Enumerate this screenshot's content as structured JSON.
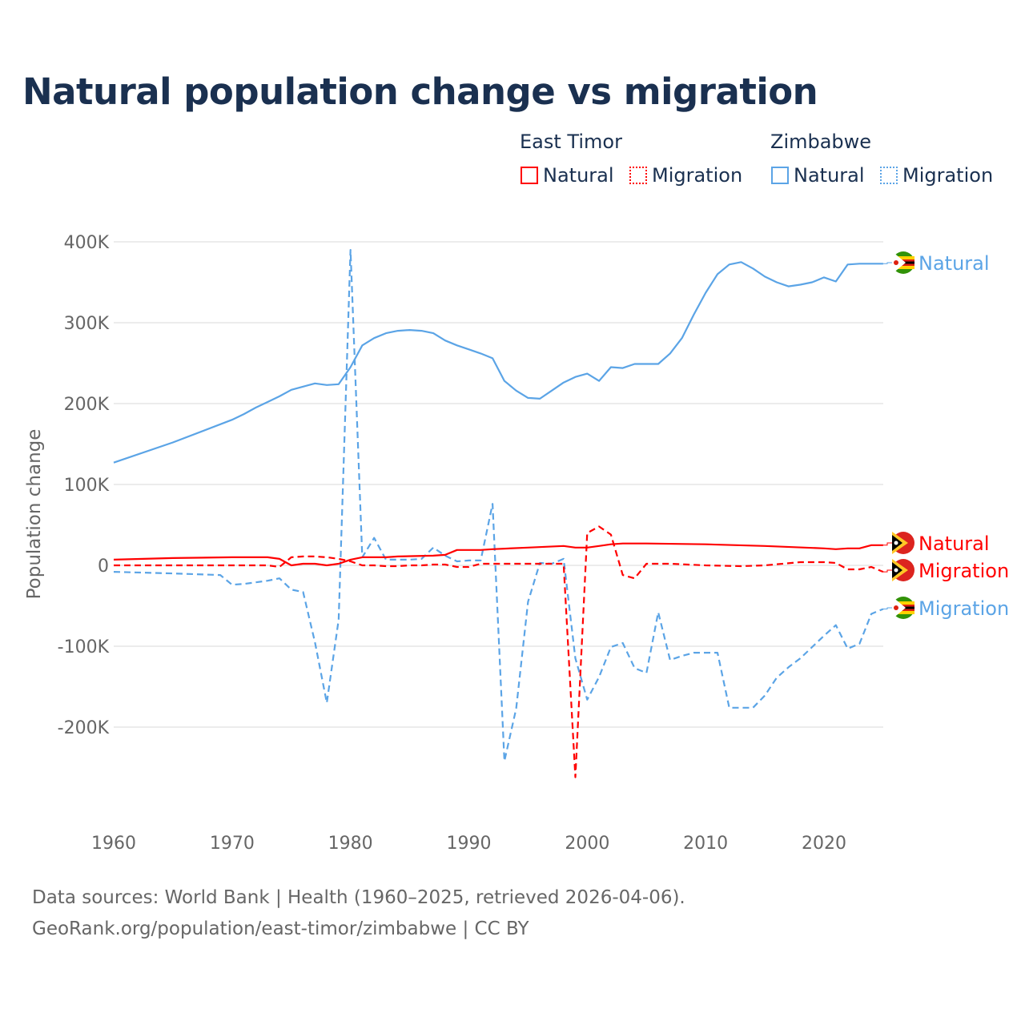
{
  "title": "Natural population change vs migration",
  "legend": {
    "groups": [
      {
        "name": "East Timor",
        "items": [
          {
            "label": "Natural",
            "style": "solid"
          },
          {
            "label": "Migration",
            "style": "dotted"
          }
        ],
        "color": "#ff0000"
      },
      {
        "name": "Zimbabwe",
        "items": [
          {
            "label": "Natural",
            "style": "solid"
          },
          {
            "label": "Migration",
            "style": "dotted"
          }
        ],
        "color": "#5ba4e6"
      }
    ]
  },
  "footer": {
    "line1": "Data sources: World Bank | Health (1960–2025, retrieved 2026-04-06).",
    "line2": "GeoRank.org/population/east-timor/zimbabwe | CC BY"
  },
  "chart_data": {
    "type": "line",
    "title": "Natural population change vs migration",
    "xlabel": "",
    "ylabel": "Population change",
    "xlim": [
      1960,
      2025
    ],
    "ylim": [
      -300000,
      400000
    ],
    "xticks": [
      1960,
      1970,
      1980,
      1990,
      2000,
      2010,
      2020
    ],
    "xtick_labels": [
      "1960",
      "1970",
      "1980",
      "1990",
      "2000",
      "2010",
      "2020"
    ],
    "yticks": [
      400000,
      300000,
      200000,
      100000,
      0,
      -100000,
      -200000
    ],
    "ytick_labels": [
      "400K",
      "300K",
      "200K",
      "100K",
      "0",
      "-100K",
      "-200K"
    ],
    "grid": true,
    "legend_position": "top-right",
    "series": [
      {
        "name": "Zimbabwe Natural",
        "end_label": "Natural",
        "color": "#5ba4e6",
        "dash": false,
        "x": [
          1960,
          1965,
          1970,
          1971,
          1972,
          1973,
          1974,
          1975,
          1976,
          1977,
          1978,
          1979,
          1980,
          1981,
          1982,
          1983,
          1984,
          1985,
          1986,
          1987,
          1988,
          1989,
          1990,
          1991,
          1992,
          1993,
          1994,
          1995,
          1996,
          1997,
          1998,
          1999,
          2000,
          2001,
          2002,
          2003,
          2004,
          2005,
          2006,
          2007,
          2008,
          2009,
          2010,
          2011,
          2012,
          2013,
          2014,
          2015,
          2016,
          2017,
          2018,
          2019,
          2020,
          2021,
          2022,
          2023,
          2024,
          2025
        ],
        "y": [
          127000,
          152000,
          180000,
          187000,
          195000,
          202000,
          209000,
          217000,
          221000,
          225000,
          223000,
          224000,
          245000,
          272000,
          281000,
          287000,
          290000,
          291000,
          290000,
          287000,
          278000,
          272000,
          267000,
          262000,
          256000,
          228000,
          216000,
          207000,
          206000,
          216000,
          226000,
          233000,
          237000,
          228000,
          245000,
          244000,
          249000,
          249000,
          249000,
          262000,
          281000,
          310000,
          337000,
          360000,
          372000,
          375000,
          367000,
          357000,
          350000,
          345000,
          347000,
          350000,
          356000,
          351000,
          372000,
          373000,
          373000,
          373000
        ]
      },
      {
        "name": "Zimbabwe Migration",
        "end_label": "Migration",
        "color": "#5ba4e6",
        "dash": true,
        "x": [
          1960,
          1965,
          1969,
          1970,
          1971,
          1972,
          1973,
          1974,
          1975,
          1976,
          1977,
          1978,
          1979,
          1980,
          1981,
          1982,
          1983,
          1984,
          1985,
          1986,
          1987,
          1988,
          1989,
          1990,
          1991,
          1992,
          1993,
          1994,
          1995,
          1996,
          1997,
          1998,
          1999,
          2000,
          2001,
          2002,
          2003,
          2004,
          2005,
          2006,
          2007,
          2008,
          2009,
          2010,
          2011,
          2012,
          2013,
          2014,
          2015,
          2016,
          2017,
          2018,
          2019,
          2020,
          2021,
          2022,
          2023,
          2024,
          2025
        ],
        "y": [
          -8000,
          -10000,
          -12000,
          -24000,
          -23000,
          -21000,
          -19000,
          -16000,
          -30000,
          -33000,
          -95000,
          -170000,
          -67000,
          390000,
          10000,
          34000,
          7000,
          7000,
          7000,
          8000,
          22000,
          12000,
          5000,
          6000,
          6000,
          76000,
          -242000,
          -177000,
          -45000,
          3000,
          2000,
          8000,
          -115000,
          -166000,
          -138000,
          -101000,
          -96000,
          -127000,
          -133000,
          -58000,
          -117000,
          -112000,
          -108000,
          -108000,
          -108000,
          -176000,
          -176000,
          -176000,
          -161000,
          -139000,
          -126000,
          -115000,
          -101000,
          -87000,
          -74000,
          -103000,
          -97000,
          -60000,
          -54000
        ]
      },
      {
        "name": "East Timor Natural",
        "end_label": "Natural",
        "color": "#ff0000",
        "dash": false,
        "x": [
          1960,
          1965,
          1970,
          1973,
          1974,
          1975,
          1976,
          1977,
          1978,
          1979,
          1980,
          1981,
          1983,
          1984,
          1987,
          1988,
          1989,
          1991,
          1992,
          1995,
          1998,
          1999,
          2000,
          2001,
          2002,
          2003,
          2005,
          2010,
          2015,
          2020,
          2021,
          2022,
          2023,
          2024,
          2025
        ],
        "y": [
          7000,
          9000,
          10000,
          10000,
          8000,
          0,
          2000,
          2000,
          0,
          2000,
          7000,
          10000,
          10000,
          11000,
          12000,
          13000,
          19000,
          19000,
          20000,
          22000,
          24000,
          22000,
          22000,
          24000,
          26000,
          27000,
          27000,
          26000,
          24000,
          21000,
          20000,
          21000,
          21000,
          25000,
          25000
        ]
      },
      {
        "name": "East Timor Migration",
        "end_label": "Migration",
        "color": "#ff0000",
        "dash": true,
        "x": [
          1960,
          1973,
          1974,
          1975,
          1976,
          1977,
          1978,
          1979,
          1980,
          1981,
          1982,
          1983,
          1984,
          1985,
          1986,
          1987,
          1988,
          1989,
          1990,
          1991,
          1992,
          1998,
          1999,
          2000,
          2001,
          2002,
          2003,
          2004,
          2005,
          2006,
          2007,
          2010,
          2013,
          2015,
          2018,
          2020,
          2021,
          2022,
          2023,
          2024,
          2025
        ],
        "y": [
          0,
          0,
          -2000,
          10000,
          11000,
          11000,
          10000,
          8000,
          5000,
          0,
          0,
          -1000,
          -1000,
          0,
          0,
          1000,
          1000,
          -2000,
          -2000,
          2000,
          2000,
          2000,
          -262000,
          40000,
          48000,
          38000,
          -12000,
          -16000,
          2000,
          2000,
          2000,
          0,
          -1000,
          0,
          4000,
          4000,
          3000,
          -5000,
          -5000,
          -2000,
          -8000
        ]
      }
    ]
  }
}
